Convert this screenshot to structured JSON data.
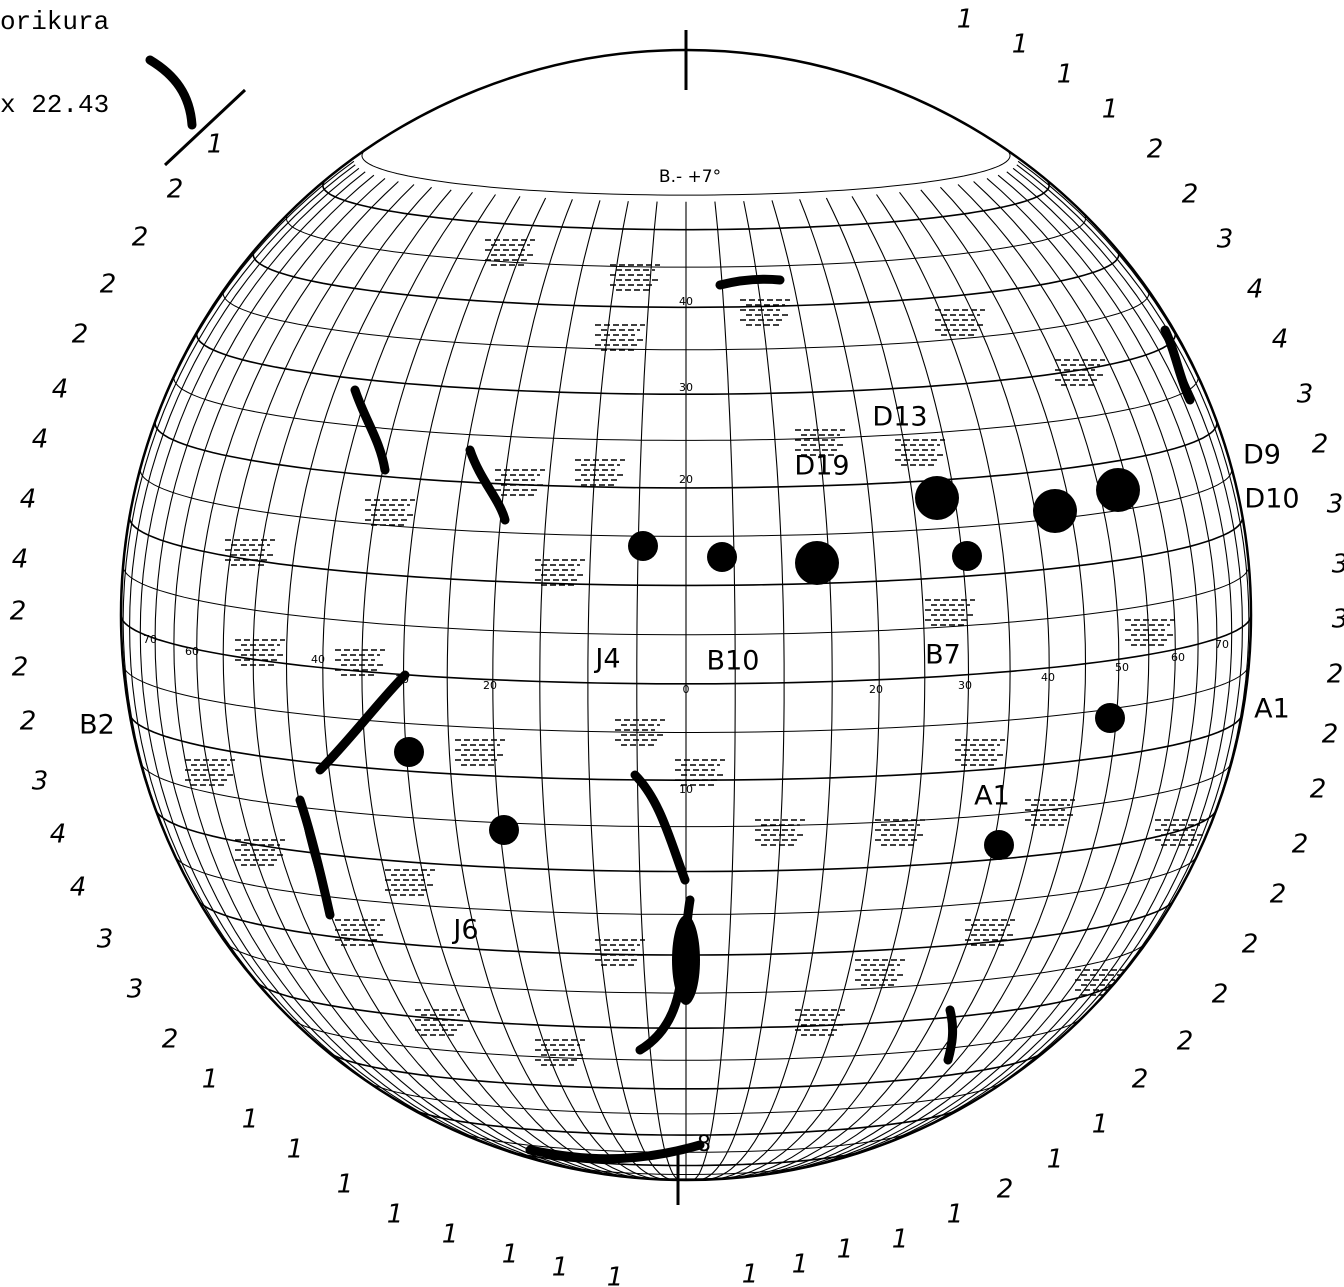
{
  "header": {
    "observatory": "orikura",
    "time": "x 22.43"
  },
  "b0_label": "B.- +7°",
  "bottom_label": "-8",
  "rim_numbers": {
    "right": [
      1,
      1,
      1,
      1,
      2,
      2,
      3,
      4,
      4,
      3,
      2,
      3,
      3,
      3,
      2,
      2,
      2,
      2,
      2,
      2,
      2,
      2,
      2,
      1,
      1,
      2,
      1,
      1,
      1,
      1,
      1
    ],
    "left": [
      1,
      2,
      2,
      2,
      2,
      4,
      4,
      4,
      4,
      2,
      2,
      2,
      3,
      4,
      4,
      3,
      3,
      2,
      1,
      1,
      1,
      1,
      1,
      1,
      1,
      1,
      1
    ]
  },
  "regions": [
    "D13",
    "D19",
    "D9",
    "D10",
    "B10",
    "B7",
    "J4",
    "J6",
    "A1",
    "A1",
    "B2"
  ],
  "latitude_labels": [
    "40",
    "30",
    "20",
    "10"
  ],
  "longitude_labels": [
    "70",
    "60",
    "40",
    "30",
    "20",
    "0",
    "20",
    "30",
    "40",
    "50",
    "60",
    "70"
  ]
}
